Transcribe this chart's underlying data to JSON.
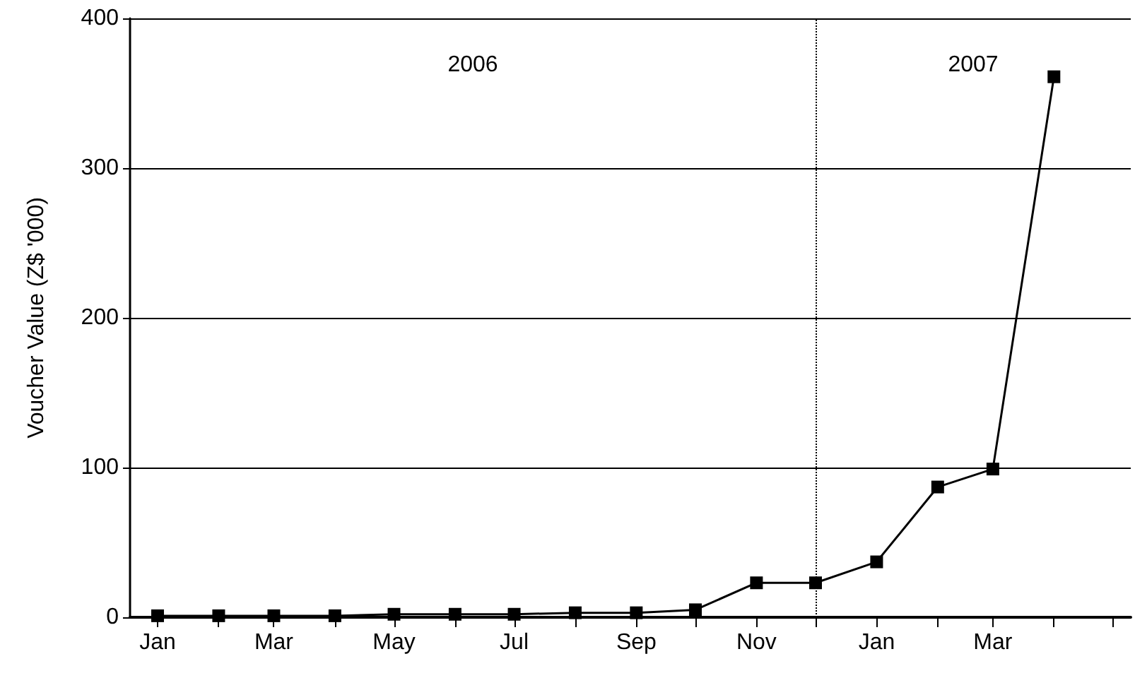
{
  "chart_data": {
    "type": "line",
    "ylabel": "Voucher Value (Z$ '000)",
    "x": [
      "2006-01",
      "2006-02",
      "2006-03",
      "2006-04",
      "2006-05",
      "2006-06",
      "2006-07",
      "2006-08",
      "2006-09",
      "2006-10",
      "2006-11",
      "2006-12",
      "2007-01",
      "2007-02",
      "2007-03",
      "2007-04"
    ],
    "values": [
      1,
      1,
      1,
      1,
      2,
      2,
      2,
      3,
      3,
      5,
      23,
      23,
      37,
      87,
      99,
      361
    ],
    "color": "#000000",
    "xlim": [
      "2005-12-18",
      "2007-05-10"
    ],
    "xticks": [
      {
        "value": "2006-01",
        "label": "Jan"
      },
      {
        "value": "2006-02",
        "label": null
      },
      {
        "value": "2006-03",
        "label": "Mar"
      },
      {
        "value": "2006-04",
        "label": null
      },
      {
        "value": "2006-05",
        "label": "May"
      },
      {
        "value": "2006-06",
        "label": null
      },
      {
        "value": "2006-07",
        "label": "Jul"
      },
      {
        "value": "2006-08",
        "label": null
      },
      {
        "value": "2006-09",
        "label": "Sep"
      },
      {
        "value": "2006-10",
        "label": null
      },
      {
        "value": "2006-11",
        "label": "Nov"
      },
      {
        "value": "2006-12",
        "label": null
      },
      {
        "value": "2007-01",
        "label": "Jan"
      },
      {
        "value": "2007-02",
        "label": null
      },
      {
        "value": "2007-03",
        "label": "Mar"
      },
      {
        "value": "2007-04",
        "label": null
      },
      {
        "value": "2007-05",
        "label": null
      }
    ],
    "ylim": [
      0,
      400
    ],
    "yticks": [
      0,
      100,
      200,
      300,
      400
    ],
    "grid": "y",
    "marker": "square",
    "line_style": "solid",
    "ref_lines": [
      {
        "axis": "x",
        "value": "2006-12",
        "line_style": "dotted",
        "color": "#000000"
      }
    ],
    "annotations": [
      "2006",
      "2007"
    ]
  }
}
